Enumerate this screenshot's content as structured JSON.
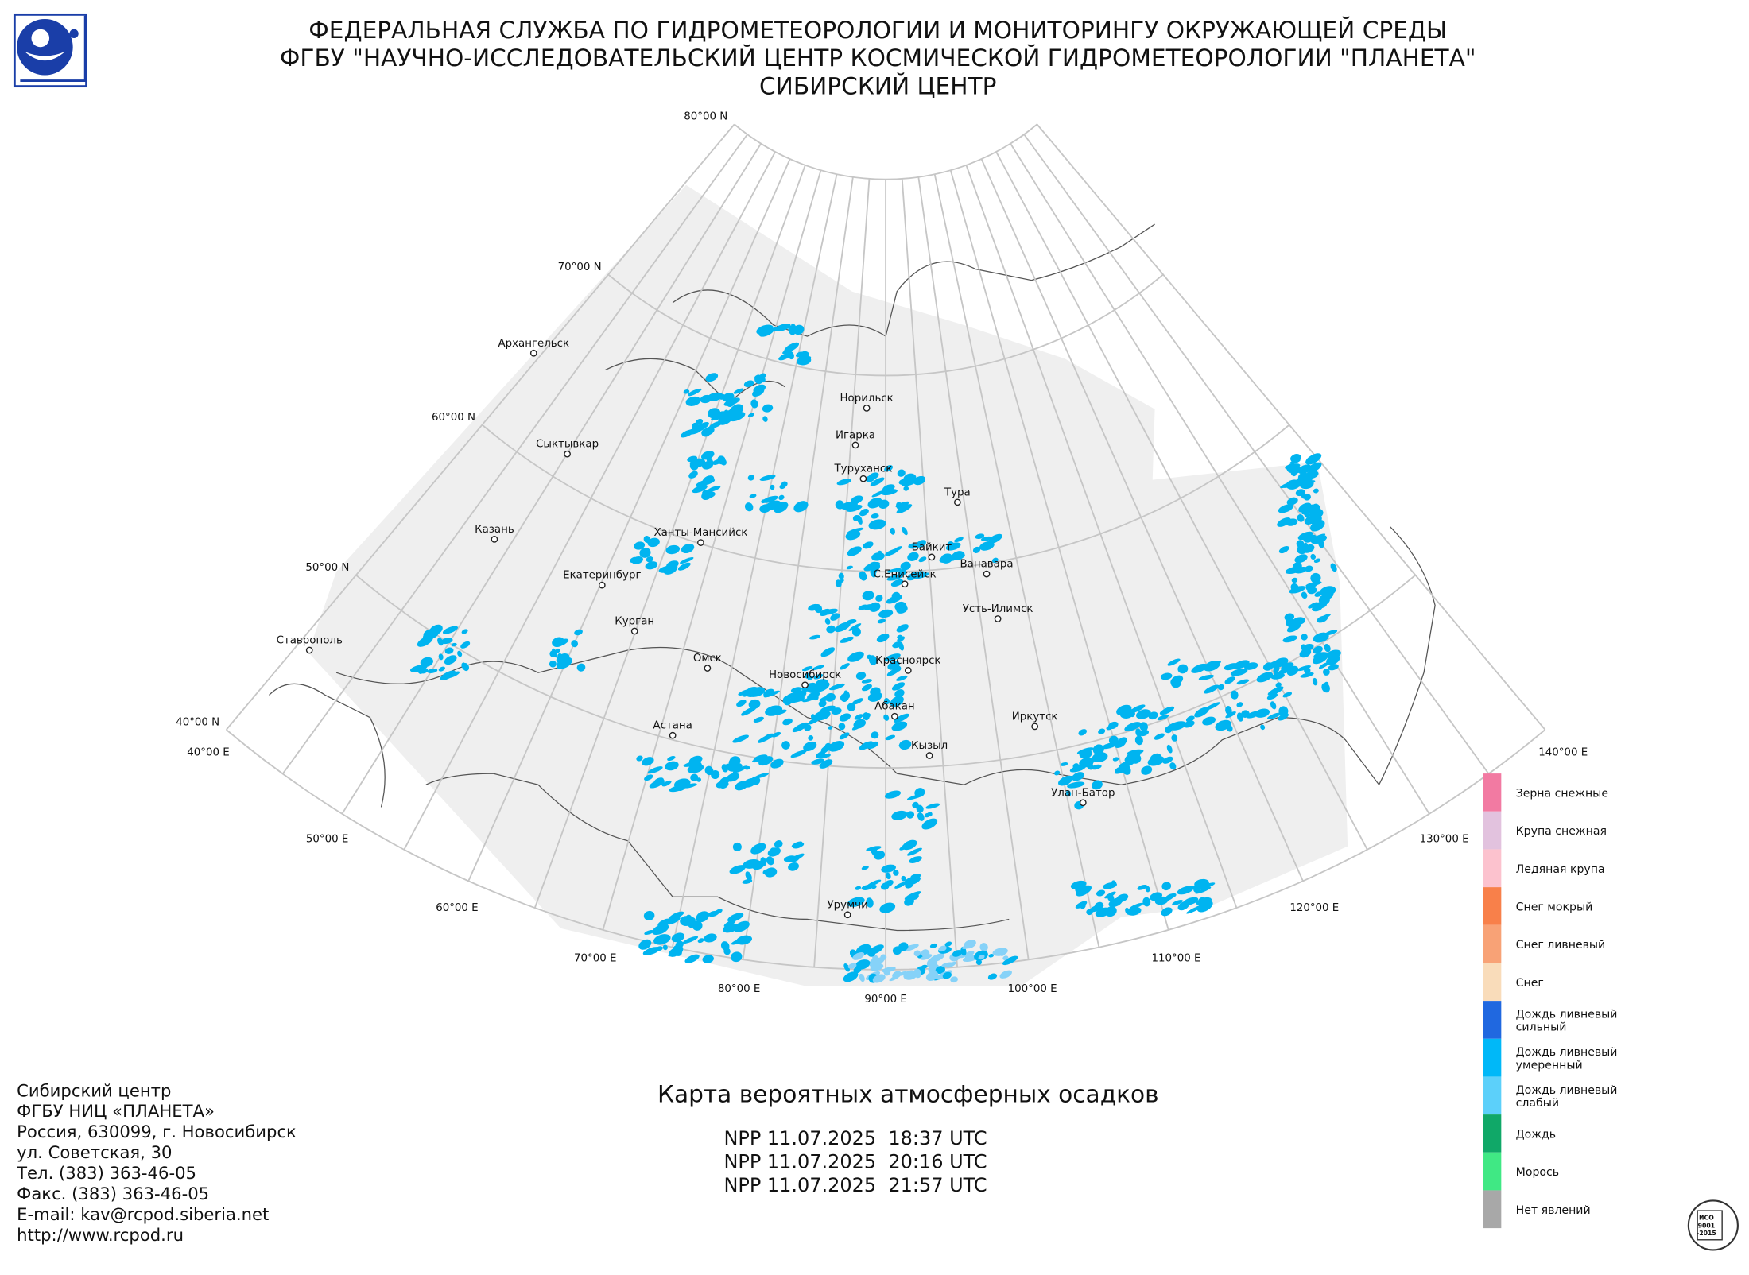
{
  "header": {
    "lines": [
      "ФЕДЕРАЛЬНАЯ СЛУЖБА ПО ГИДРОМЕТЕОРОЛОГИИ И МОНИТОРИНГУ ОКРУЖАЮЩЕЙ СРЕДЫ",
      "ФГБУ \"НАУЧНО-ИССЛЕДОВАТЕЛЬСКИЙ ЦЕНТР КОСМИЧЕСКОЙ ГИДРОМЕТЕОРОЛОГИИ \"ПЛАНЕТА\"",
      "СИБИРСКИЙ ЦЕНТР"
    ]
  },
  "map": {
    "parallel_labels": [
      "80°00 N",
      "70°00 N",
      "60°00 N",
      "50°00 N",
      "40°00 N"
    ],
    "meridian_labels": [
      "40°00 E",
      "50°00 E",
      "60°00 E",
      "70°00 E",
      "80°00 E",
      "90°00 E",
      "100°00 E",
      "110°00 E",
      "120°00 E",
      "130°00 E",
      "140°00 E"
    ],
    "cities": [
      "Архангельск",
      "Норильск",
      "Игарка",
      "Туруханск",
      "Тура",
      "Сыктывкар",
      "Казань",
      "Ханты-Мансийск",
      "Байкит",
      "Ванавара",
      "С.Енисейск",
      "Екатеринбург",
      "Усть-Илимск",
      "Курган",
      "Ставрополь",
      "Омск",
      "Новосибирск",
      "Красноярск",
      "Абакан",
      "Иркутск",
      "Астана",
      "Кызыл",
      "Улан-Батор",
      "Урумчи"
    ]
  },
  "legend": {
    "items": [
      {
        "lines": [
          "Зерна снежные"
        ],
        "color": "#f27aa2"
      },
      {
        "lines": [
          "Крупа снежная"
        ],
        "color": "#e2c2de"
      },
      {
        "lines": [
          "Ледяная крупа"
        ],
        "color": "#fcc2ce"
      },
      {
        "lines": [
          "Снег мокрый"
        ],
        "color": "#f8804a"
      },
      {
        "lines": [
          "Снег ливневый"
        ],
        "color": "#f8a276"
      },
      {
        "lines": [
          "Снег"
        ],
        "color": "#f9dcba"
      },
      {
        "lines": [
          "Дождь ливневый",
          "сильный"
        ],
        "color": "#2068e0"
      },
      {
        "lines": [
          "Дождь ливневый",
          "умеренный"
        ],
        "color": "#00b8f8"
      },
      {
        "lines": [
          "Дождь ливневый",
          "слабый"
        ],
        "color": "#5cd0fa"
      },
      {
        "lines": [
          "Дождь"
        ],
        "color": "#10a868"
      },
      {
        "lines": [
          "Морось"
        ],
        "color": "#40e884"
      },
      {
        "lines": [
          "Нет явлений"
        ],
        "color": "#a8a8a8"
      }
    ]
  },
  "footer": {
    "contact": [
      "Сибирский центр",
      "ФГБУ НИЦ «ПЛАНЕТА»",
      "Россия, 630099, г. Новосибирск",
      "ул. Советская, 30",
      "Тел. (383) 363-46-05",
      "Факс. (383) 363-46-05",
      "E-mail: kav@rcpod.siberia.net",
      "http://www.rcpod.ru"
    ],
    "title": "Карта вероятных атмосферных осадков",
    "passes": [
      "NPP 11.07.2025  18:37 UTC",
      "NPP 11.07.2025  20:16 UTC",
      "NPP 11.07.2025  21:57 UTC"
    ]
  },
  "certificate": {
    "lines": [
      "ИСО",
      "9001",
      "-2015"
    ]
  }
}
